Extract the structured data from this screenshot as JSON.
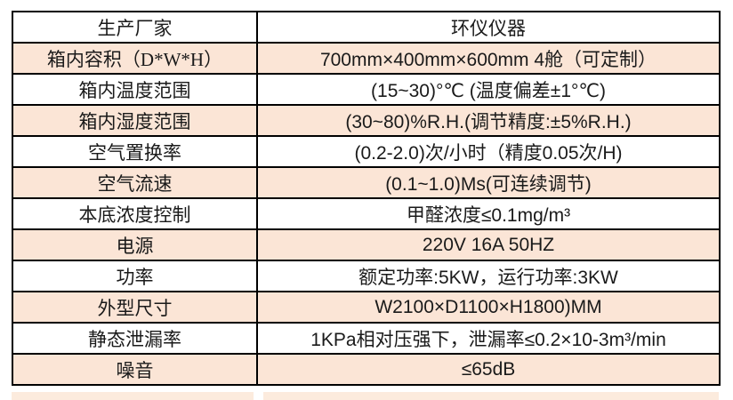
{
  "colors": {
    "row_alt_background": "#fbe5d6",
    "row_background": "#ffffff",
    "border": "#000000",
    "text": "#1a1a1a"
  },
  "table": {
    "rows": [
      {
        "label": "生产厂家",
        "value": "环仪仪器"
      },
      {
        "label": "箱内容积（D*W*H）",
        "value": "700mm×400mm×600mm 4舱（可定制）"
      },
      {
        "label": "箱内温度范围",
        "value": "(15~30)°℃ (温度偏差±1°℃)"
      },
      {
        "label": "箱内湿度范围",
        "value": "(30~80)%R.H.(调节精度:±5%R.H.)"
      },
      {
        "label": "空气置换率",
        "value": "(0.2-2.0)次/小时（精度0.05次/H)"
      },
      {
        "label": "空气流速",
        "value": "(0.1~1.0)Ms(可连续调节)"
      },
      {
        "label": "本底浓度控制",
        "value": "甲醛浓度≤0.1mg/m³"
      },
      {
        "label": "电源",
        "value": "220V 16A 50HZ"
      },
      {
        "label": "功率",
        "value": "额定功率:5KW，运行功率:3KW"
      },
      {
        "label": "外型尺寸",
        "value": "W2100×D1100×H1800)MM"
      },
      {
        "label": "静态泄漏率",
        "value": "1KPa相对压强下，泄漏率≤0.2×10-3m³/min"
      },
      {
        "label": "噪音",
        "value": "≤65dB"
      }
    ]
  }
}
